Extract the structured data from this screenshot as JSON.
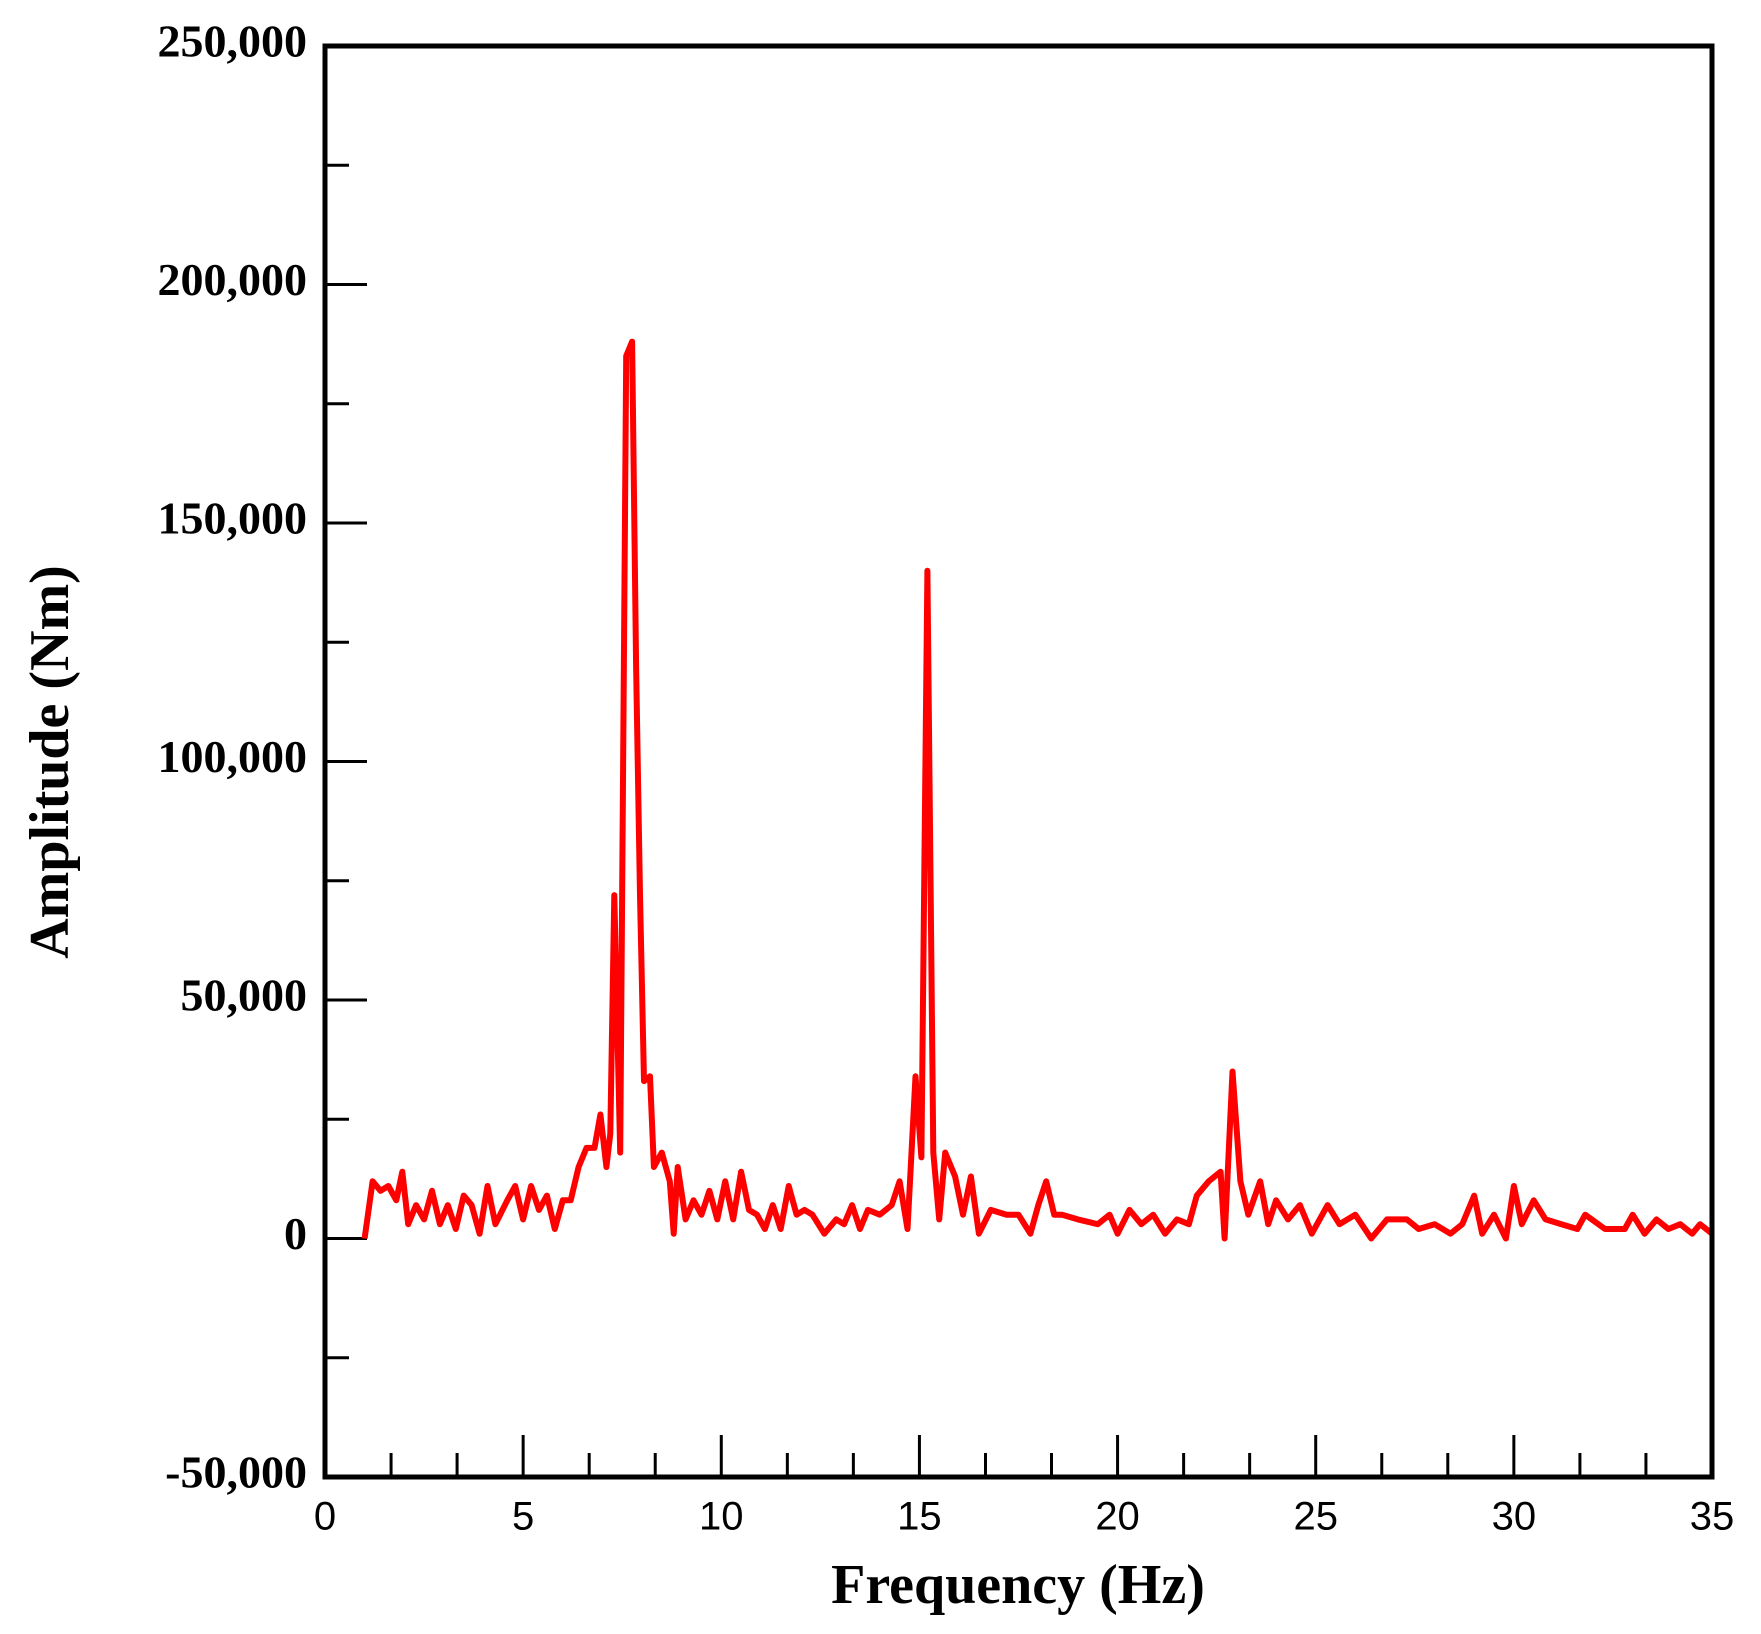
{
  "chart_data": {
    "type": "line",
    "xlabel": "Frequency (Hz)",
    "ylabel": "Amplitude (Nm)",
    "color": "#ff0000",
    "x": [
      1.0,
      1.2,
      1.4,
      1.6,
      1.8,
      1.95,
      2.1,
      2.3,
      2.5,
      2.7,
      2.9,
      3.1,
      3.3,
      3.5,
      3.7,
      3.9,
      4.1,
      4.3,
      4.6,
      4.8,
      5.0,
      5.2,
      5.4,
      5.6,
      5.8,
      6.0,
      6.2,
      6.4,
      6.6,
      6.8,
      6.95,
      7.1,
      7.2,
      7.3,
      7.45,
      7.6,
      7.75,
      7.85,
      7.95,
      8.05,
      8.2,
      8.3,
      8.5,
      8.7,
      8.8,
      8.9,
      9.1,
      9.3,
      9.5,
      9.7,
      9.9,
      10.1,
      10.3,
      10.5,
      10.7,
      10.9,
      11.1,
      11.3,
      11.5,
      11.7,
      11.9,
      12.1,
      12.3,
      12.6,
      12.9,
      13.1,
      13.3,
      13.5,
      13.7,
      14.0,
      14.3,
      14.5,
      14.7,
      14.9,
      15.05,
      15.2,
      15.35,
      15.5,
      15.65,
      15.9,
      16.1,
      16.3,
      16.5,
      16.8,
      17.2,
      17.5,
      17.8,
      18.0,
      18.2,
      18.4,
      18.6,
      19.0,
      19.5,
      19.8,
      20.0,
      20.3,
      20.6,
      20.9,
      21.2,
      21.5,
      21.8,
      22.0,
      22.3,
      22.6,
      22.7,
      22.9,
      23.1,
      23.3,
      23.6,
      23.8,
      24.0,
      24.3,
      24.6,
      24.9,
      25.3,
      25.6,
      26.0,
      26.4,
      26.8,
      27.3,
      27.6,
      28.0,
      28.4,
      28.7,
      29.0,
      29.2,
      29.5,
      29.8,
      30.0,
      30.2,
      30.5,
      30.8,
      31.2,
      31.6,
      31.8,
      32.3,
      32.8,
      33.0,
      33.3,
      33.6,
      33.9,
      34.2,
      34.5,
      34.7,
      35.0
    ],
    "values": [
      0,
      12000,
      10000,
      11000,
      8000,
      14000,
      3000,
      7000,
      4000,
      10000,
      3000,
      7000,
      2000,
      9000,
      7000,
      1000,
      11000,
      3000,
      8000,
      11000,
      4000,
      11000,
      6000,
      9000,
      2000,
      8000,
      8000,
      15000,
      19000,
      19000,
      26000,
      15000,
      22000,
      72000,
      18000,
      185000,
      188000,
      120000,
      72000,
      33000,
      34000,
      15000,
      18000,
      12000,
      1000,
      15000,
      4000,
      8000,
      5000,
      10000,
      4000,
      12000,
      4000,
      14000,
      6000,
      5000,
      2000,
      7000,
      2000,
      11000,
      5000,
      6000,
      5000,
      1000,
      4000,
      3000,
      7000,
      2000,
      6000,
      5000,
      7000,
      12000,
      2000,
      34000,
      17000,
      140000,
      18000,
      4000,
      18000,
      13000,
      5000,
      13000,
      1000,
      6000,
      5000,
      5000,
      1000,
      7000,
      12000,
      5000,
      5000,
      4000,
      3000,
      5000,
      1000,
      6000,
      3000,
      5000,
      1000,
      4000,
      3000,
      9000,
      12000,
      14000,
      0,
      35000,
      12000,
      5000,
      12000,
      3000,
      8000,
      4000,
      7000,
      1000,
      7000,
      3000,
      5000,
      0,
      4000,
      4000,
      2000,
      3000,
      1000,
      3000,
      9000,
      1000,
      5000,
      0,
      11000,
      3000,
      8000,
      4000,
      3000,
      2000,
      5000,
      2000,
      2000,
      5000,
      1000,
      4000,
      2000,
      3000,
      1000,
      3000,
      1000
    ],
    "xlim": [
      0,
      35
    ],
    "xticks": [
      0,
      5,
      10,
      15,
      20,
      25,
      30,
      35
    ],
    "xminorticks": [
      1.667,
      3.333,
      6.667,
      8.333,
      11.667,
      13.333,
      16.667,
      18.333,
      21.667,
      23.333,
      26.667,
      28.333,
      31.667,
      33.333
    ],
    "ylim": [
      -50000,
      250000
    ],
    "yticks": [
      {
        "value": -50000,
        "label": "-50,000"
      },
      0,
      {
        "value": 50000,
        "label": "50,000"
      },
      {
        "value": 100000,
        "label": "100,000"
      },
      {
        "value": 150000,
        "label": "150,000"
      },
      {
        "value": 200000,
        "label": "200,000"
      },
      {
        "value": 250000,
        "label": "250,000"
      }
    ],
    "yminorticks": [
      -25000,
      25000,
      75000,
      125000,
      175000,
      225000
    ]
  }
}
